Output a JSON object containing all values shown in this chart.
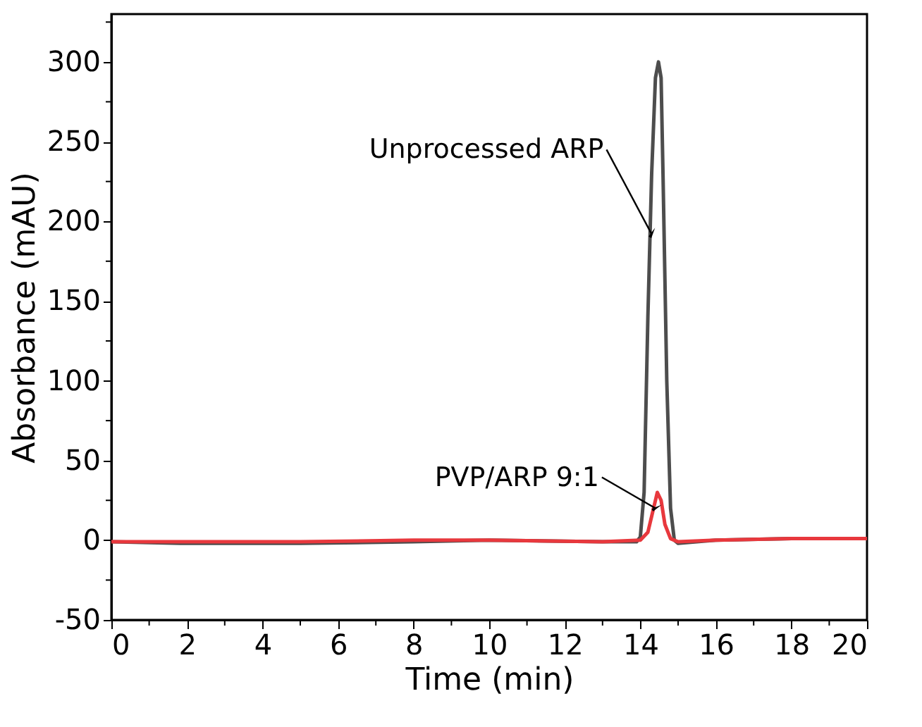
{
  "chart_data": {
    "type": "line",
    "xlabel": "Time (min)",
    "ylabel": "Absorbance (mAU)",
    "xlim": [
      0,
      20
    ],
    "ylim": [
      -50,
      330
    ],
    "xticks": [
      0,
      {
        "value": 1,
        "label": null
      },
      2,
      {
        "value": 3,
        "label": null
      },
      4,
      {
        "value": 5,
        "label": null
      },
      6,
      {
        "value": 7,
        "label": null
      },
      8,
      {
        "value": 9,
        "label": null
      },
      10,
      {
        "value": 11,
        "label": null
      },
      12,
      {
        "value": 13,
        "label": null
      },
      14,
      {
        "value": 15,
        "label": null
      },
      16,
      {
        "value": 17,
        "label": null
      },
      18,
      {
        "value": 19,
        "label": null
      },
      20
    ],
    "yticks": [
      -50,
      {
        "value": -25,
        "label": null
      },
      0,
      {
        "value": 25,
        "label": null
      },
      50,
      {
        "value": 75,
        "label": null
      },
      100,
      {
        "value": 125,
        "label": null
      },
      150,
      {
        "value": 175,
        "label": null
      },
      200,
      {
        "value": 225,
        "label": null
      },
      250,
      {
        "value": 275,
        "label": null
      },
      300,
      {
        "value": 325,
        "label": null
      }
    ],
    "grid": false,
    "legend": false,
    "line_style": "solid",
    "marker": "none",
    "annotations": [
      {
        "text": "Unprocessed ARP",
        "x": 14.3,
        "y": 192
      },
      {
        "text": "PVP/ARP 9:1",
        "x": 14.4,
        "y": 20
      }
    ],
    "series": [
      {
        "color": "#4d4d4d",
        "x": [
          0,
          2,
          5,
          8,
          10,
          13,
          13.9,
          14.0,
          14.1,
          14.2,
          14.3,
          14.4,
          14.48,
          14.55,
          14.6,
          14.7,
          14.8,
          14.9,
          15.0,
          16,
          18,
          20
        ],
        "values": [
          -1,
          -2,
          -2,
          -1,
          0,
          -1,
          -1,
          2,
          30,
          140,
          230,
          290,
          300,
          290,
          230,
          100,
          20,
          0,
          -2,
          0,
          1,
          1
        ]
      },
      {
        "color": "#e8383d",
        "x": [
          0,
          5,
          8,
          10,
          13,
          14,
          14.2,
          14.35,
          14.45,
          14.55,
          14.65,
          14.8,
          15,
          16,
          18,
          20
        ],
        "values": [
          -1,
          -1,
          0,
          0,
          -1,
          0,
          5,
          20,
          30,
          25,
          10,
          1,
          -1,
          0,
          1,
          1
        ]
      }
    ]
  }
}
